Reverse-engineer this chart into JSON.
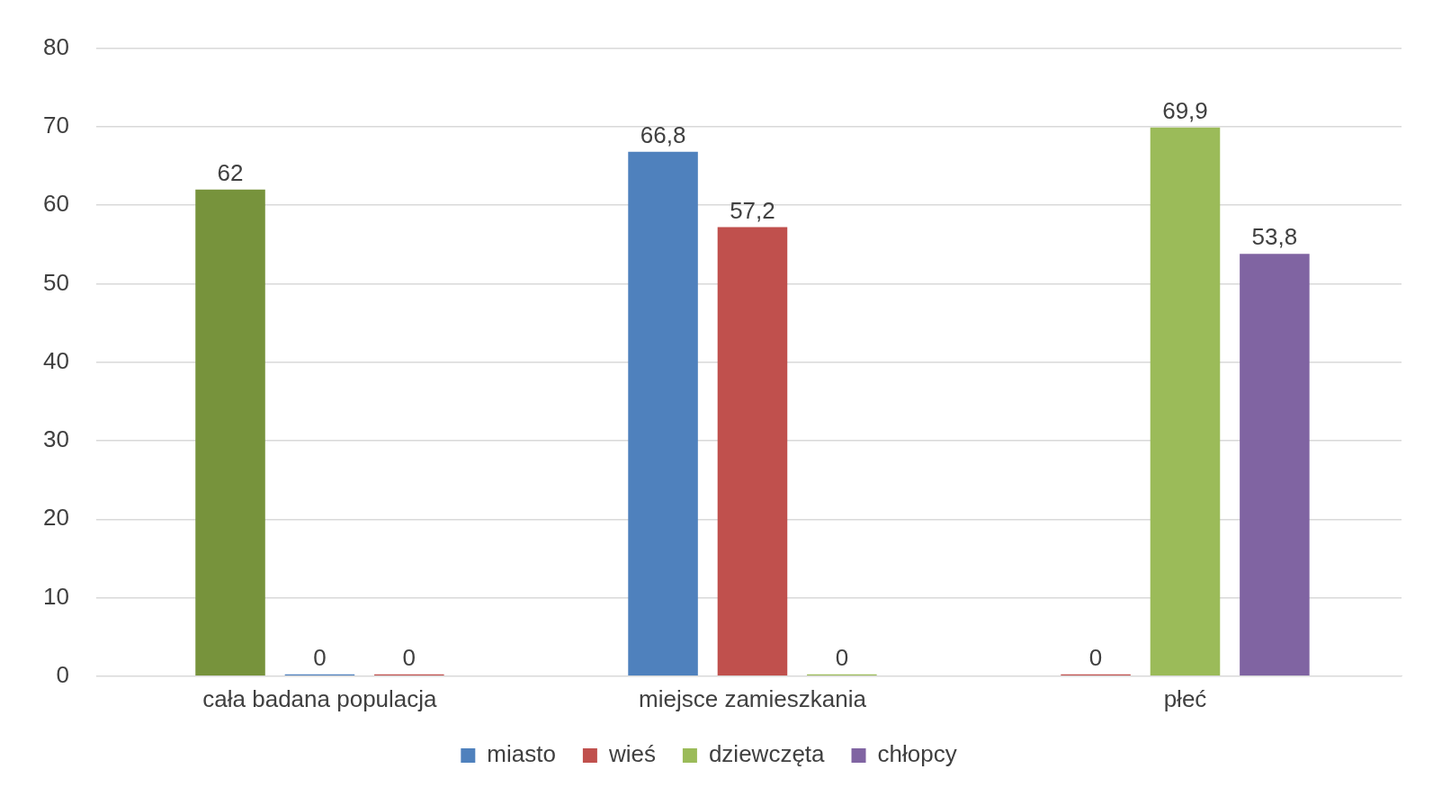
{
  "chart_data": {
    "type": "bar",
    "categories": [
      "cała badana populacja",
      "miejsce zamieszkania",
      "płeć"
    ],
    "series": [
      {
        "color": "#77933c",
        "values": [
          62,
          null,
          null
        ],
        "value_labels": [
          "62",
          null,
          null
        ]
      },
      {
        "name": "miasto",
        "color": "#4f81bd",
        "values": [
          0,
          66.8,
          null
        ],
        "value_labels": [
          "0",
          "66,8",
          null
        ]
      },
      {
        "name": "wieś",
        "color": "#c0504d",
        "values": [
          0,
          57.2,
          0
        ],
        "value_labels": [
          "0",
          "57,2",
          "0"
        ]
      },
      {
        "name": "dziewczęta",
        "color": "#9bbb59",
        "values": [
          null,
          0,
          69.9
        ],
        "value_labels": [
          null,
          "0",
          "69,9"
        ]
      },
      {
        "name": "chłopcy",
        "color": "#8064a2",
        "values": [
          null,
          null,
          53.8
        ],
        "value_labels": [
          null,
          null,
          "53,8"
        ]
      }
    ],
    "ylim": [
      0,
      80
    ],
    "yticks": [
      0,
      10,
      20,
      30,
      40,
      50,
      60,
      70,
      80
    ],
    "grid": "y",
    "legend": "bottom"
  }
}
